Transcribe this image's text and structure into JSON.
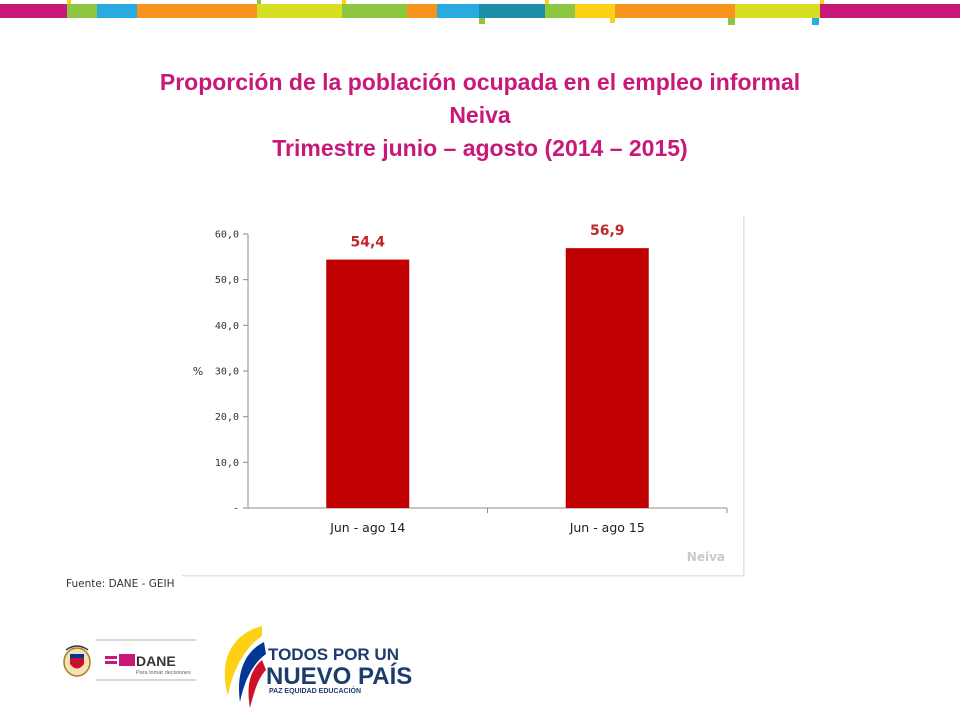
{
  "header": {
    "title_line1": "Proporción de la población ocupada en el empleo informal",
    "title_line2": "Neiva",
    "title_line3": "Trimestre junio – agosto (2014 – 2015)"
  },
  "chart_data": {
    "type": "bar",
    "categories": [
      "Jun - ago 14",
      "Jun - ago 15"
    ],
    "values": [
      54.4,
      56.9
    ],
    "value_labels": [
      "54,4",
      "56,9"
    ],
    "ylabel": "%",
    "ylim": [
      0,
      60
    ],
    "yticks": [
      0,
      10,
      20,
      30,
      40,
      50,
      60
    ],
    "ytick_labels": [
      "-",
      "10,0",
      "20,0",
      "30,0",
      "40,0",
      "50,0",
      "60,0"
    ],
    "watermark": "Neiva",
    "bar_color": "#c00000",
    "label_color": "#c0272d",
    "grid": false,
    "legend": "none"
  },
  "source": "Fuente: DANE - GEIH",
  "footer": {
    "dane_logo_text": "DANE",
    "dane_tagline": "Para tomar decisiones",
    "gov_line1": "TODOS POR UN",
    "gov_line2": "NUEVO PAÍS",
    "gov_line3": "PAZ  EQUIDAD  EDUCACIÓN",
    "icons": [
      "coat-of-arms-icon",
      "dane-logo-icon",
      "colombia-flag-swoosh-icon"
    ]
  },
  "colors": {
    "title": "#c8187a",
    "stripe": [
      "#c8187a",
      "#8dc63f",
      "#29abe2",
      "#f7941d",
      "#d7df23",
      "#1b8fa8",
      "#fcd116"
    ]
  }
}
